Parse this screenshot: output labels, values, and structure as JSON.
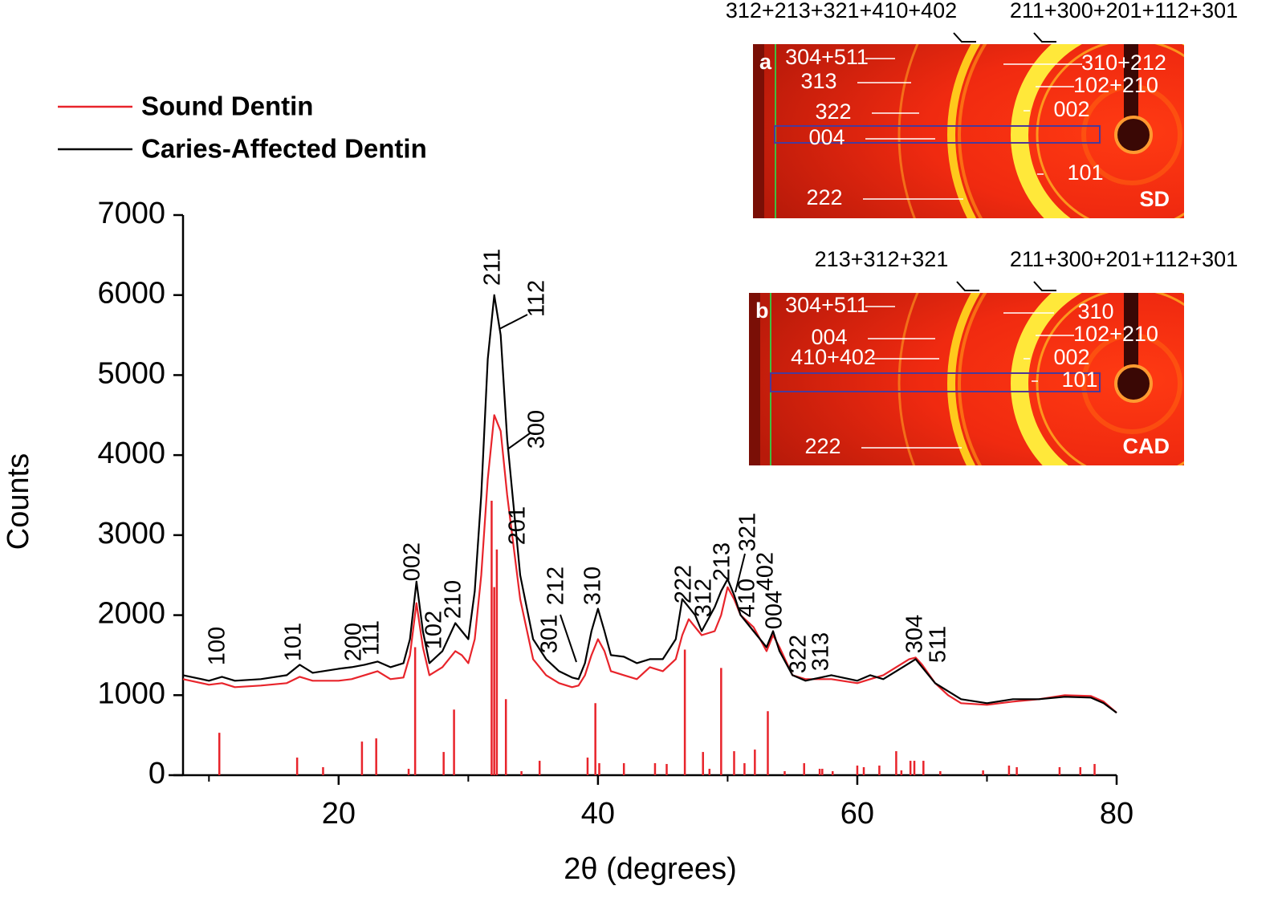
{
  "chart_data": {
    "type": "line",
    "x_label": "2θ (degrees)",
    "y_label": "Counts",
    "xlim": [
      8,
      80
    ],
    "xticks": [
      20,
      40,
      60,
      80
    ],
    "xminorticks": [
      10,
      30,
      50,
      70
    ],
    "ylim": [
      0,
      7000
    ],
    "yticks": [
      0,
      1000,
      2000,
      3000,
      4000,
      5000,
      6000,
      7000
    ],
    "grid": false,
    "legend": "upper left",
    "x": [
      8,
      10,
      11,
      12,
      14,
      16,
      17,
      18,
      20,
      21,
      22,
      23,
      24,
      25,
      25.5,
      26,
      26.5,
      27,
      28,
      29,
      29.5,
      30,
      30.5,
      31,
      31.5,
      32,
      32.5,
      33,
      34,
      35,
      36,
      37,
      38,
      38.5,
      39,
      39.5,
      40,
      40.5,
      41,
      42,
      43,
      44,
      45,
      46,
      46.5,
      47,
      47.5,
      48,
      49,
      49.5,
      50,
      50.5,
      51,
      52,
      53,
      53.5,
      54,
      55,
      56,
      58,
      60,
      61,
      62,
      63,
      64,
      64.5,
      65,
      66,
      67,
      68,
      70,
      72,
      74,
      76,
      78,
      79,
      80
    ],
    "series": [
      {
        "name": "Sound Dentin",
        "color": "#e8242b",
        "values": [
          1200,
          1130,
          1150,
          1100,
          1120,
          1150,
          1230,
          1180,
          1180,
          1200,
          1250,
          1300,
          1200,
          1220,
          1500,
          2150,
          1600,
          1250,
          1350,
          1550,
          1500,
          1400,
          1700,
          2500,
          3700,
          4500,
          4300,
          3500,
          2200,
          1450,
          1250,
          1150,
          1100,
          1120,
          1250,
          1500,
          1700,
          1550,
          1300,
          1250,
          1200,
          1350,
          1300,
          1450,
          1750,
          1950,
          1850,
          1750,
          1800,
          2000,
          2350,
          2200,
          2000,
          1850,
          1550,
          1750,
          1600,
          1250,
          1200,
          1200,
          1150,
          1200,
          1250,
          1350,
          1450,
          1470,
          1380,
          1150,
          1000,
          900,
          880,
          920,
          950,
          1000,
          990,
          920,
          780
        ]
      },
      {
        "name": "Caries-Affected Dentin",
        "color": "#000000",
        "values": [
          1250,
          1180,
          1230,
          1180,
          1200,
          1250,
          1380,
          1280,
          1330,
          1350,
          1380,
          1420,
          1350,
          1400,
          1700,
          2420,
          1800,
          1400,
          1550,
          1900,
          1800,
          1700,
          2300,
          3500,
          5200,
          6000,
          5500,
          4200,
          2500,
          1700,
          1450,
          1300,
          1220,
          1200,
          1400,
          1800,
          2080,
          1800,
          1500,
          1480,
          1400,
          1450,
          1450,
          1700,
          2200,
          2100,
          2000,
          1800,
          2100,
          2300,
          2450,
          2250,
          2000,
          1800,
          1600,
          1800,
          1550,
          1250,
          1180,
          1250,
          1180,
          1250,
          1200,
          1300,
          1400,
          1450,
          1350,
          1150,
          1050,
          950,
          900,
          950,
          950,
          980,
          970,
          900,
          780
        ]
      }
    ],
    "reference_lines": {
      "color": "#e8242b",
      "x": [
        10.8,
        16.8,
        18.8,
        21.8,
        22.9,
        25.4,
        25.9,
        28.1,
        28.9,
        31.8,
        32.0,
        32.2,
        32.9,
        34.1,
        35.5,
        39.2,
        39.8,
        40.1,
        42.0,
        44.4,
        45.3,
        46.7,
        48.1,
        48.6,
        49.5,
        50.5,
        51.3,
        52.1,
        53.1,
        54.4,
        55.9,
        57.1,
        57.3,
        58.1,
        60.0,
        60.5,
        61.7,
        63.0,
        63.4,
        64.1,
        64.4,
        65.1,
        66.4,
        69.7,
        71.7,
        72.3,
        75.6,
        77.2,
        78.3
      ],
      "values": [
        530,
        220,
        100,
        420,
        460,
        80,
        1600,
        290,
        820,
        3430,
        2350,
        2820,
        950,
        50,
        180,
        220,
        900,
        150,
        150,
        150,
        140,
        1570,
        290,
        80,
        1340,
        300,
        150,
        320,
        800,
        50,
        150,
        80,
        80,
        50,
        120,
        100,
        120,
        300,
        60,
        180,
        180,
        180,
        50,
        60,
        120,
        100,
        100,
        100,
        140
      ]
    },
    "annotations": [
      "100",
      "101",
      "200",
      "111",
      "002",
      "102",
      "210",
      "211",
      "112",
      "300",
      "201",
      "301",
      "212",
      "310",
      "222",
      "312",
      "213",
      "321",
      "410",
      "402",
      "004",
      "322",
      "313",
      "304",
      "511"
    ],
    "insets": [
      {
        "panel": "a",
        "tag": "SD",
        "top_labels": [
          "312+213+321+410+402",
          "211+300+201+112+301"
        ],
        "labels": [
          "304+511",
          "313",
          "322",
          "004",
          "222",
          "310+212",
          "102+210",
          "002",
          "101"
        ]
      },
      {
        "panel": "b",
        "tag": "CAD",
        "top_labels": [
          "213+312+321",
          "211+300+201+112+301"
        ],
        "labels": [
          "304+511",
          "004",
          "410+402",
          "222",
          "310",
          "102+210",
          "002",
          "101"
        ]
      }
    ]
  }
}
